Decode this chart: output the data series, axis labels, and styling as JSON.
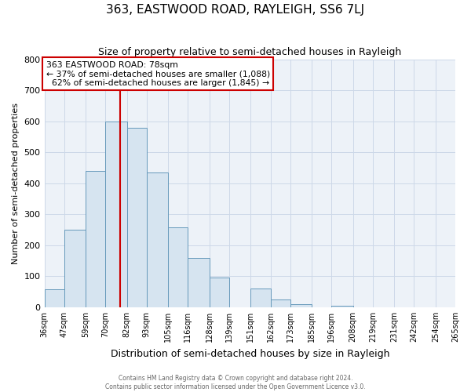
{
  "title": "363, EASTWOOD ROAD, RAYLEIGH, SS6 7LJ",
  "subtitle": "Size of property relative to semi-detached houses in Rayleigh",
  "xlabel": "Distribution of semi-detached houses by size in Rayleigh",
  "ylabel": "Number of semi-detached properties",
  "bar_edges": [
    36,
    47,
    59,
    70,
    82,
    93,
    105,
    116,
    128,
    139,
    151,
    162,
    173,
    185,
    196,
    208,
    219,
    231,
    242,
    254,
    265
  ],
  "bar_heights": [
    57,
    250,
    440,
    600,
    580,
    435,
    258,
    160,
    97,
    0,
    60,
    25,
    10,
    0,
    5,
    0,
    0,
    0,
    0,
    0
  ],
  "bar_color": "#d6e4f0",
  "bar_edge_color": "#6699bb",
  "property_line_x": 78,
  "property_line_color": "#cc0000",
  "annotation_line1": "363 EASTWOOD ROAD: 78sqm",
  "annotation_line2": "← 37% of semi-detached houses are smaller (1,088)",
  "annotation_line3": "  62% of semi-detached houses are larger (1,845) →",
  "annotation_box_color": "#cc0000",
  "ylim": [
    0,
    800
  ],
  "yticks": [
    0,
    100,
    200,
    300,
    400,
    500,
    600,
    700,
    800
  ],
  "tick_labels": [
    "36sqm",
    "47sqm",
    "59sqm",
    "70sqm",
    "82sqm",
    "93sqm",
    "105sqm",
    "116sqm",
    "128sqm",
    "139sqm",
    "151sqm",
    "162sqm",
    "173sqm",
    "185sqm",
    "196sqm",
    "208sqm",
    "219sqm",
    "231sqm",
    "242sqm",
    "254sqm",
    "265sqm"
  ],
  "footer_line1": "Contains HM Land Registry data © Crown copyright and database right 2024.",
  "footer_line2": "Contains public sector information licensed under the Open Government Licence v3.0.",
  "background_color": "#ffffff",
  "grid_color": "#ccd8e8",
  "ax_background": "#edf2f8"
}
